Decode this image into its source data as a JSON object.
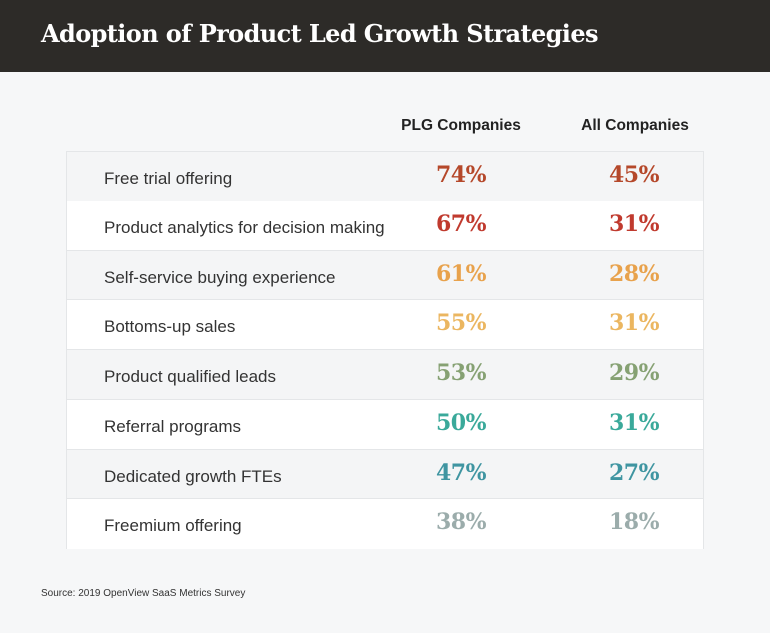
{
  "chart_data": {
    "type": "table",
    "title": "Adoption of Product Led Growth Strategies",
    "columns": [
      "PLG Companies",
      "All Companies"
    ],
    "rows": [
      {
        "label": "Free trial offering",
        "plg": "74%",
        "all": "45%",
        "color": "#b5482a"
      },
      {
        "label": "Product analytics for decision making",
        "plg": "67%",
        "all": "31%",
        "color": "#c03a2e"
      },
      {
        "label": "Self-service buying experience",
        "plg": "61%",
        "all": "28%",
        "color": "#e8a24c"
      },
      {
        "label": "Bottoms-up sales",
        "plg": "55%",
        "all": "31%",
        "color": "#ebb660"
      },
      {
        "label": "Product qualified leads",
        "plg": "53%",
        "all": "29%",
        "color": "#86a173"
      },
      {
        "label": "Referral programs",
        "plg": "50%",
        "all": "31%",
        "color": "#3aa99a"
      },
      {
        "label": "Dedicated growth FTEs",
        "plg": "47%",
        "all": "27%",
        "color": "#3f95a1"
      },
      {
        "label": "Freemium offering",
        "plg": "38%",
        "all": "18%",
        "color": "#9bacab"
      }
    ],
    "source": "Source: 2019 OpenView SaaS Metrics Survey"
  },
  "colors": {
    "header_bg": "#2d2b28"
  }
}
